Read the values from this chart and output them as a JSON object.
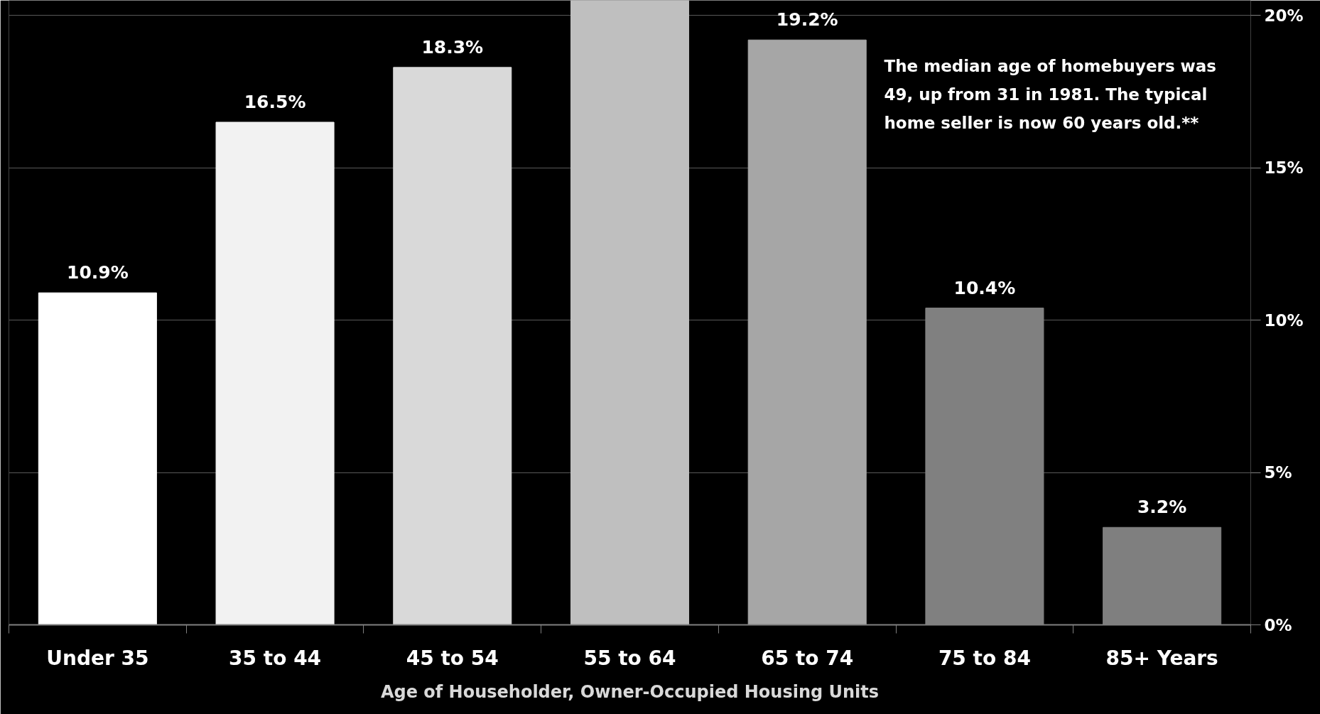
{
  "chart_data": {
    "type": "bar",
    "categories": [
      "Under 35",
      "35 to 44",
      "45 to 54",
      "55 to 64",
      "65 to 74",
      "75 to 84",
      "85+ Years"
    ],
    "values": [
      10.9,
      16.5,
      18.3,
      20.5,
      19.2,
      10.4,
      3.2
    ],
    "colors": [
      "#ffffff",
      "#f2f2f2",
      "#d9d9d9",
      "#bfbfbf",
      "#a6a6a6",
      "#808080",
      "#7f7f7f"
    ],
    "value_labels": [
      "10.9%",
      "16.5%",
      "18.3%",
      null,
      "19.2%",
      "10.4%",
      "3.2%"
    ],
    "xlabel": "Age of Householder, Owner-Occupied Housing Units",
    "annotations": [
      "The median age of  homebuyers was\n49, up from 31 in 1981. The typical\nhome seller is now 60 years old.**"
    ],
    "ylim": [
      0,
      20.5
    ],
    "yticks": [
      {
        "value": 0,
        "label": "0%"
      },
      {
        "value": 5,
        "label": "5%"
      },
      {
        "value": 10,
        "label": "10%"
      },
      {
        "value": 15,
        "label": "15%"
      },
      {
        "value": 20,
        "label": "20%"
      }
    ],
    "grid": "y"
  }
}
